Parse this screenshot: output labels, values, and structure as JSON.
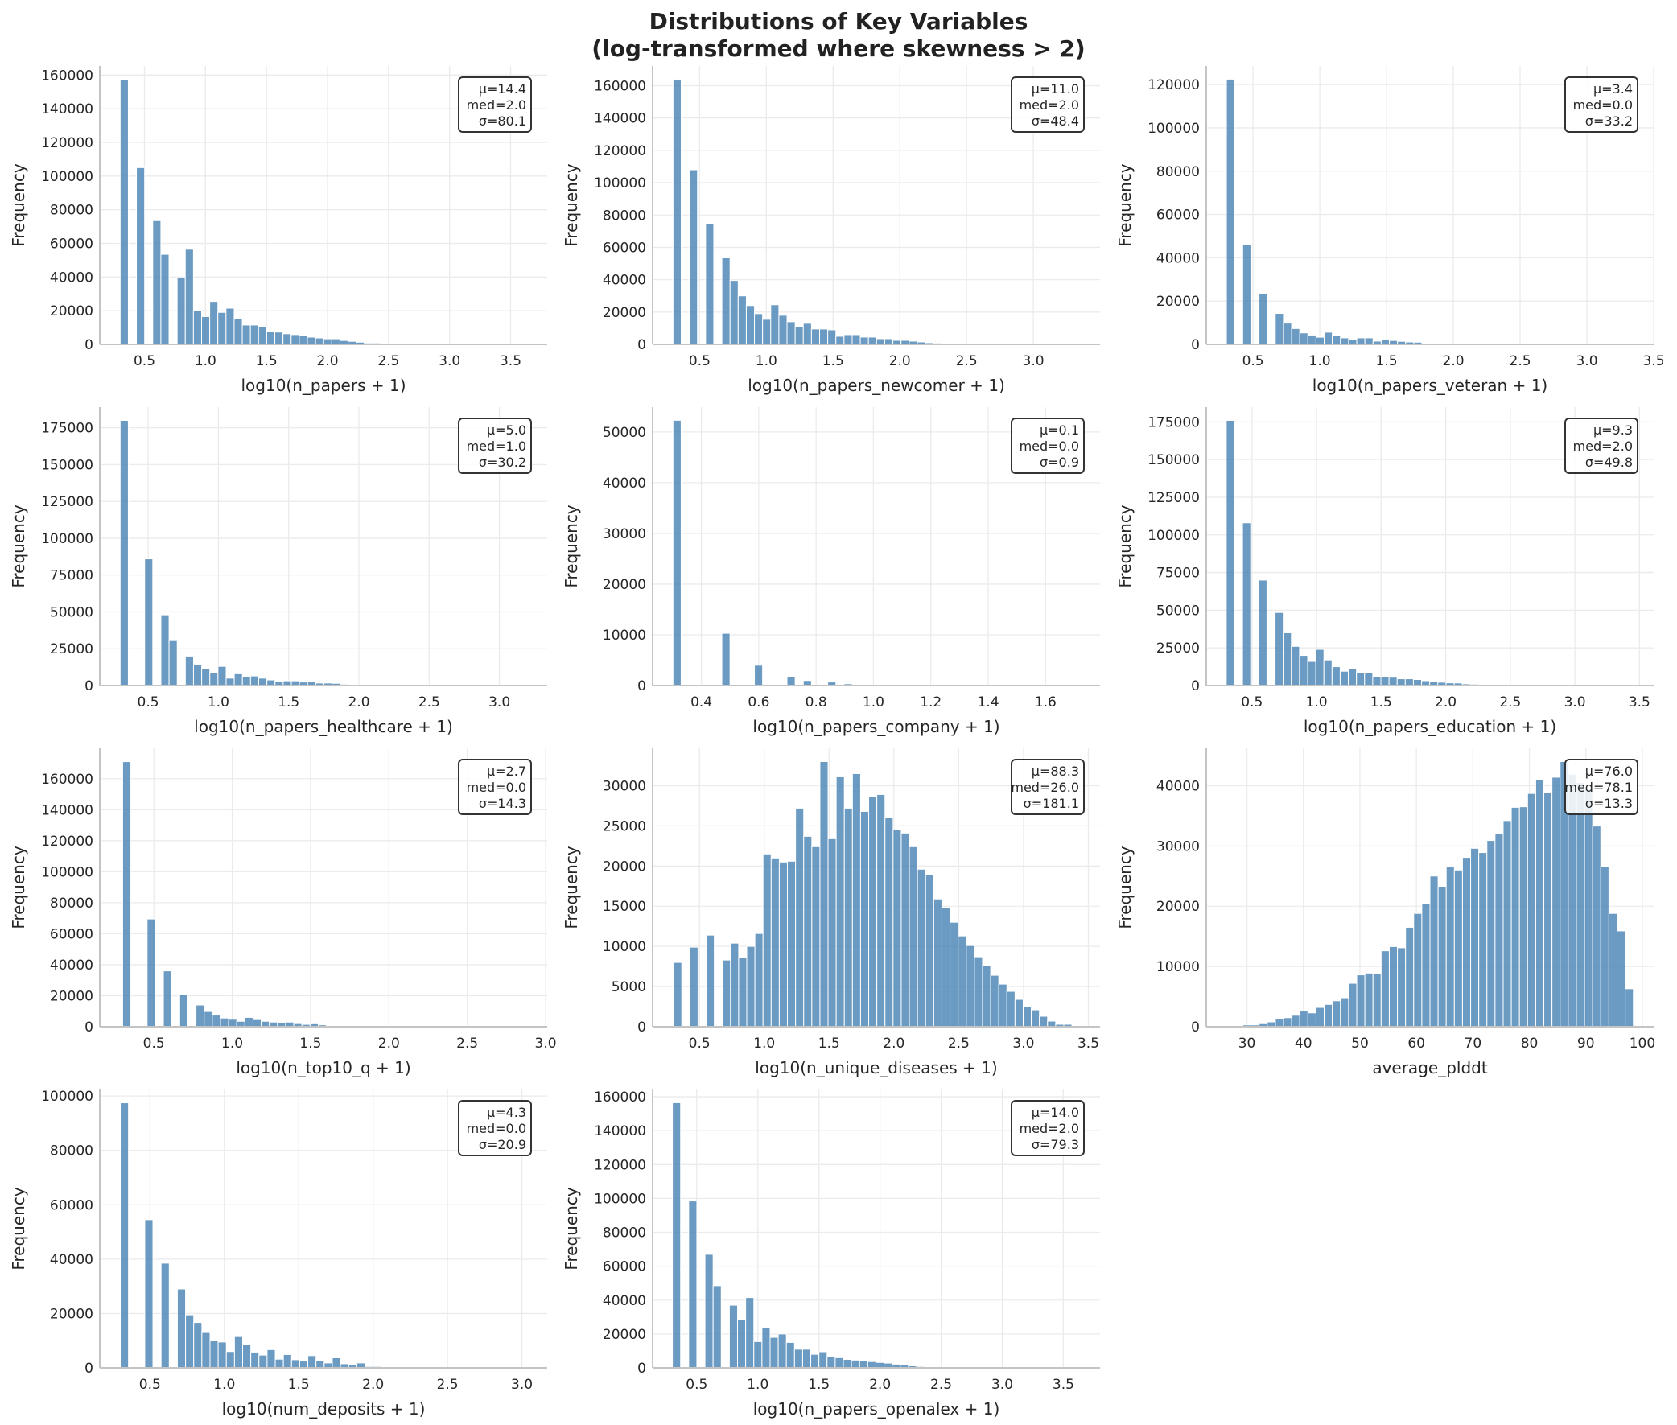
{
  "figure": {
    "title_line1": "Distributions of Key Variables",
    "title_line2": "(log-transformed where skewness > 2)"
  },
  "style": {
    "bar_color": "#4682b4",
    "bar_alpha": 0.8,
    "grid": true
  },
  "chart_data": [
    {
      "type": "bar",
      "xlabel": "log10(n_papers + 1)",
      "ylabel": "Frequency",
      "bin_start": 0.301,
      "bin_width": 0.0667,
      "xlim": [
        0.134,
        3.8
      ],
      "ylim": [
        0,
        165400
      ],
      "xticks": [
        "0.5",
        "1.0",
        "1.5",
        "2.0",
        "2.5",
        "3.0",
        "3.5"
      ],
      "yticks": [
        "0",
        "20000",
        "40000",
        "60000",
        "80000",
        "100000",
        "120000",
        "140000",
        "160000"
      ],
      "stats": [
        "μ=14.4",
        "med=2.0",
        "σ=80.1"
      ],
      "values": [
        157500,
        0,
        105000,
        0,
        73500,
        53500,
        0,
        40000,
        56500,
        20000,
        16500,
        25500,
        19000,
        21500,
        15500,
        11500,
        11500,
        10500,
        7800,
        7300,
        6300,
        5800,
        5300,
        4300,
        3800,
        3300,
        3300,
        2300,
        1800,
        1300,
        800,
        800,
        300,
        200,
        100,
        80,
        60,
        40,
        30,
        20,
        15,
        10,
        8,
        5,
        4,
        3,
        2,
        1,
        1,
        1
      ]
    },
    {
      "type": "bar",
      "xlabel": "log10(n_papers_newcomer + 1)",
      "ylabel": "Frequency",
      "bin_start": 0.301,
      "bin_width": 0.061,
      "xlim": [
        0.148,
        3.5
      ],
      "ylim": [
        0,
        172200
      ],
      "xticks": [
        "0.5",
        "1.0",
        "1.5",
        "2.0",
        "2.5",
        "3.0"
      ],
      "yticks": [
        "0",
        "20000",
        "40000",
        "60000",
        "80000",
        "100000",
        "120000",
        "140000",
        "160000"
      ],
      "stats": [
        "μ=11.0",
        "med=2.0",
        "σ=48.4"
      ],
      "values": [
        164000,
        0,
        108000,
        0,
        74500,
        0,
        53500,
        39500,
        30000,
        24000,
        19000,
        15500,
        24500,
        18000,
        14000,
        11000,
        13000,
        9500,
        9500,
        9000,
        5000,
        6000,
        6000,
        4500,
        4500,
        3500,
        3500,
        2500,
        2500,
        2000,
        1500,
        1000,
        800,
        300,
        200,
        200,
        100,
        80,
        60,
        40,
        30,
        20,
        15,
        10,
        8,
        5,
        4,
        3,
        2,
        1
      ]
    },
    {
      "type": "bar",
      "xlabel": "log10(n_papers_veteran + 1)",
      "ylabel": "Frequency",
      "bin_start": 0.301,
      "bin_width": 0.061,
      "xlim": [
        0.15,
        3.5
      ],
      "ylim": [
        0,
        128600
      ],
      "xticks": [
        "0.5",
        "1.0",
        "1.5",
        "2.0",
        "2.5",
        "3.0",
        "3.5"
      ],
      "yticks": [
        "0",
        "20000",
        "40000",
        "60000",
        "80000",
        "100000",
        "120000"
      ],
      "stats": [
        "μ=3.4",
        "med=0.0",
        "σ=33.2"
      ],
      "values": [
        122500,
        0,
        46000,
        0,
        23300,
        0,
        14300,
        9800,
        7300,
        5300,
        4300,
        3300,
        5600,
        4200,
        3000,
        2300,
        3000,
        3000,
        1500,
        2200,
        1800,
        1400,
        1100,
        1000,
        500,
        300,
        200,
        150,
        100,
        80,
        60,
        40,
        30,
        20,
        15,
        10,
        8,
        6,
        5,
        4,
        3,
        2,
        2,
        1,
        1,
        1,
        1,
        0,
        0,
        1
      ]
    },
    {
      "type": "bar",
      "xlabel": "log10(n_papers_healthcare + 1)",
      "ylabel": "Frequency",
      "bin_start": 0.301,
      "bin_width": 0.058,
      "xlim": [
        0.156,
        3.34
      ],
      "ylim": [
        0,
        189000
      ],
      "xticks": [
        "0.5",
        "1.0",
        "1.5",
        "2.0",
        "2.5",
        "3.0"
      ],
      "yticks": [
        "0",
        "25000",
        "50000",
        "75000",
        "100000",
        "125000",
        "150000",
        "175000"
      ],
      "stats": [
        "μ=5.0",
        "med=1.0",
        "σ=30.2"
      ],
      "values": [
        180000,
        0,
        0,
        86000,
        0,
        48000,
        30500,
        0,
        20000,
        14500,
        11500,
        8500,
        13000,
        5000,
        8000,
        6000,
        6500,
        5000,
        3800,
        2800,
        3200,
        3200,
        2400,
        2600,
        1700,
        1700,
        1500,
        900,
        400,
        300,
        200,
        150,
        100,
        80,
        60,
        40,
        30,
        20,
        15,
        10,
        8,
        6,
        5,
        4,
        3,
        2,
        2,
        1,
        1,
        1
      ]
    },
    {
      "type": "bar",
      "xlabel": "log10(n_papers_company + 1)",
      "ylabel": "Frequency",
      "bin_start": 0.301,
      "bin_width": 0.0284,
      "xlim": [
        0.23,
        1.79
      ],
      "ylim": [
        0,
        54900
      ],
      "xticks": [
        "0.4",
        "0.6",
        "0.8",
        "1.0",
        "1.2",
        "1.4",
        "1.6"
      ],
      "yticks": [
        "0",
        "10000",
        "20000",
        "30000",
        "40000",
        "50000"
      ],
      "stats": [
        "μ=0.1",
        "med=0.0",
        "σ=0.9"
      ],
      "values": [
        52300,
        0,
        0,
        0,
        0,
        0,
        10300,
        0,
        0,
        0,
        4000,
        0,
        0,
        0,
        1800,
        0,
        1000,
        0,
        0,
        700,
        0,
        350,
        0,
        150,
        100,
        0,
        60,
        40,
        0,
        30,
        0,
        20,
        15,
        10,
        8,
        6,
        5,
        4,
        3,
        3,
        2,
        2,
        1,
        1,
        1,
        1,
        0,
        1,
        0,
        1
      ]
    },
    {
      "type": "bar",
      "xlabel": "log10(n_papers_education + 1)",
      "ylabel": "Frequency",
      "bin_start": 0.301,
      "bin_width": 0.063,
      "xlim": [
        0.146,
        3.61
      ],
      "ylim": [
        0,
        184800
      ],
      "xticks": [
        "0.5",
        "1.0",
        "1.5",
        "2.0",
        "2.5",
        "3.0",
        "3.5"
      ],
      "yticks": [
        "0",
        "25000",
        "50000",
        "75000",
        "100000",
        "125000",
        "150000",
        "175000"
      ],
      "stats": [
        "μ=9.3",
        "med=2.0",
        "σ=49.8"
      ],
      "values": [
        176000,
        0,
        108000,
        0,
        70000,
        0,
        48500,
        35000,
        26000,
        20000,
        16000,
        24000,
        17000,
        12500,
        9500,
        11000,
        8500,
        8500,
        6000,
        6000,
        5500,
        4500,
        4500,
        4000,
        3200,
        2800,
        2200,
        1800,
        1700,
        1100,
        900,
        500,
        300,
        200,
        150,
        100,
        80,
        60,
        40,
        30,
        20,
        15,
        10,
        8,
        6,
        4,
        3,
        2,
        1,
        1
      ]
    },
    {
      "type": "bar",
      "xlabel": "log10(n_top10_q + 1)",
      "ylabel": "Frequency",
      "bin_start": 0.301,
      "bin_width": 0.052,
      "xlim": [
        0.155,
        3.01
      ],
      "ylim": [
        0,
        179600
      ],
      "xticks": [
        "0.5",
        "1.0",
        "1.5",
        "2.0",
        "2.5",
        "3.0"
      ],
      "yticks": [
        "0",
        "20000",
        "40000",
        "60000",
        "80000",
        "100000",
        "120000",
        "140000",
        "160000"
      ],
      "stats": [
        "μ=2.7",
        "med=0.0",
        "σ=14.3"
      ],
      "values": [
        171000,
        0,
        0,
        69500,
        0,
        36000,
        0,
        21000,
        0,
        14000,
        9800,
        7500,
        5600,
        4800,
        3500,
        6000,
        4600,
        3500,
        3000,
        2600,
        3000,
        2000,
        1500,
        1900,
        1200,
        700,
        600,
        600,
        300,
        200,
        150,
        100,
        80,
        60,
        40,
        30,
        20,
        15,
        10,
        8,
        6,
        5,
        4,
        3,
        2,
        2,
        1,
        1,
        1,
        1
      ]
    },
    {
      "type": "bar",
      "xlabel": "log10(n_unique_diseases + 1)",
      "ylabel": "Frequency",
      "bin_start": 0.301,
      "bin_width": 0.0627,
      "xlim": [
        0.139,
        3.59
      ],
      "ylim": [
        0,
        34650
      ],
      "xticks": [
        "0.5",
        "1.0",
        "1.5",
        "2.0",
        "2.5",
        "3.0",
        "3.5"
      ],
      "yticks": [
        "0",
        "5000",
        "10000",
        "15000",
        "20000",
        "25000",
        "30000"
      ],
      "stats": [
        "μ=88.3",
        "med=26.0",
        "σ=181.1"
      ],
      "values": [
        8000,
        0,
        9900,
        0,
        11400,
        0,
        8300,
        10400,
        8600,
        10000,
        11600,
        21500,
        21000,
        20500,
        20600,
        27200,
        23700,
        22400,
        33000,
        23400,
        31100,
        27200,
        31500,
        26800,
        28600,
        28900,
        26000,
        24500,
        24100,
        22400,
        19600,
        18900,
        15900,
        14800,
        13000,
        11300,
        10100,
        8700,
        7600,
        6400,
        5300,
        4400,
        3400,
        2500,
        2100,
        1300,
        700,
        300,
        300,
        100
      ]
    },
    {
      "type": "bar",
      "xlabel": "average_plddt",
      "ylabel": "Frequency",
      "bin_start": 26.4,
      "bin_width": 1.44,
      "xlim": [
        22.8,
        102.0
      ],
      "ylim": [
        0,
        46200
      ],
      "xticks": [
        "30",
        "40",
        "50",
        "60",
        "70",
        "80",
        "90",
        "100"
      ],
      "yticks": [
        "0",
        "10000",
        "20000",
        "30000",
        "40000"
      ],
      "stats": [
        "μ=76.0",
        "med=78.1",
        "σ=13.3"
      ],
      "values": [
        30,
        100,
        300,
        300,
        500,
        800,
        1400,
        1500,
        1900,
        2600,
        2300,
        3200,
        3700,
        4300,
        4800,
        7200,
        8600,
        8900,
        8800,
        12600,
        13300,
        13100,
        16500,
        18800,
        20400,
        25000,
        23300,
        26500,
        26000,
        28100,
        29600,
        28900,
        30900,
        32000,
        34200,
        36400,
        36500,
        38700,
        41000,
        38900,
        41400,
        44000,
        41900,
        40500,
        39500,
        33300,
        26600,
        18800,
        15900,
        6300
      ]
    },
    {
      "type": "bar",
      "xlabel": "log10(num_deposits + 1)",
      "ylabel": "Frequency",
      "bin_start": 0.301,
      "bin_width": 0.0548,
      "xlim": [
        0.163,
        3.17
      ],
      "ylim": [
        0,
        102400
      ],
      "xticks": [
        "0.5",
        "1.0",
        "1.5",
        "2.0",
        "2.5",
        "3.0"
      ],
      "yticks": [
        "0",
        "20000",
        "40000",
        "60000",
        "80000",
        "100000"
      ],
      "stats": [
        "μ=4.3",
        "med=0.0",
        "σ=20.9"
      ],
      "values": [
        97500,
        0,
        0,
        54500,
        0,
        38500,
        0,
        29000,
        19500,
        16700,
        13000,
        10000,
        9500,
        6000,
        11500,
        8500,
        5800,
        4700,
        6700,
        3200,
        4900,
        3000,
        2500,
        4500,
        2600,
        1800,
        3700,
        1500,
        1100,
        1800,
        500,
        500,
        100,
        80,
        60,
        40,
        30,
        20,
        15,
        10,
        8,
        6,
        5,
        4,
        3,
        2,
        1,
        1,
        1,
        1
      ]
    },
    {
      "type": "bar",
      "xlabel": "log10(n_papers_openalex + 1)",
      "ylabel": "Frequency",
      "bin_start": 0.301,
      "bin_width": 0.0666,
      "xlim": [
        0.139,
        3.8
      ],
      "ylim": [
        0,
        164300
      ],
      "xticks": [
        "0.5",
        "1.0",
        "1.5",
        "2.0",
        "2.5",
        "3.0",
        "3.5"
      ],
      "yticks": [
        "0",
        "20000",
        "40000",
        "60000",
        "80000",
        "100000",
        "120000",
        "140000",
        "160000"
      ],
      "stats": [
        "μ=14.0",
        "med=2.0",
        "σ=79.3"
      ],
      "values": [
        156500,
        0,
        98500,
        0,
        67000,
        48500,
        0,
        37000,
        28500,
        41500,
        15500,
        24000,
        18000,
        20000,
        15000,
        11000,
        11000,
        8000,
        9500,
        6500,
        6000,
        5000,
        4600,
        4200,
        3700,
        3200,
        2800,
        2200,
        1800,
        1200,
        800,
        700,
        300,
        200,
        100,
        80,
        60,
        40,
        30,
        20,
        15,
        10,
        8,
        5,
        4,
        3,
        2,
        1,
        1,
        1
      ]
    }
  ]
}
